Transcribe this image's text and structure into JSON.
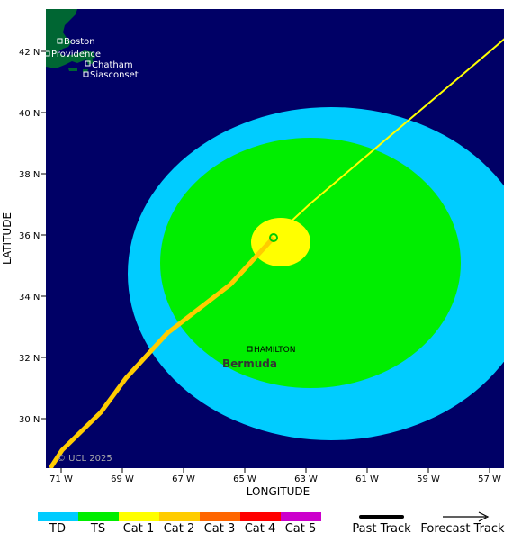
{
  "map": {
    "latitude_label": "LATITUDE",
    "longitude_label": "LONGITUDE",
    "lat_ticks": [
      "42 N",
      "40 N",
      "38 N",
      "36 N",
      "34 N",
      "32 N",
      "30 N"
    ],
    "lon_ticks": [
      "71 W",
      "69 W",
      "67 W",
      "65 W",
      "63 W",
      "61 W",
      "59 W",
      "57 W"
    ],
    "credit": "© UCL 2025",
    "places": {
      "boston": "Boston",
      "providence": "Providence",
      "chatham": "Chatham",
      "siasconset": "Siasconset",
      "hamilton": "HAMILTON",
      "bermuda": "Bermuda"
    },
    "colors": {
      "ocean": "#000066",
      "land": "#006633",
      "ts_wind_field": "#00ccff",
      "hurricane_wind_field": "#00ee00",
      "core_wind_field": "#ffff00",
      "forecast_track": "#ffff00",
      "past_track": "#ffcc00"
    }
  },
  "legend": {
    "categories": [
      {
        "label": "TD",
        "color": "#00ccff"
      },
      {
        "label": "TS",
        "color": "#00ee00"
      },
      {
        "label": "Cat 1",
        "color": "#ffff00"
      },
      {
        "label": "Cat 2",
        "color": "#ffcc00"
      },
      {
        "label": "Cat 3",
        "color": "#ff6600"
      },
      {
        "label": "Cat 4",
        "color": "#ff0000"
      },
      {
        "label": "Cat 5",
        "color": "#cc00cc"
      }
    ],
    "past_track_label": "Past Track",
    "forecast_track_label": "Forecast Track"
  }
}
